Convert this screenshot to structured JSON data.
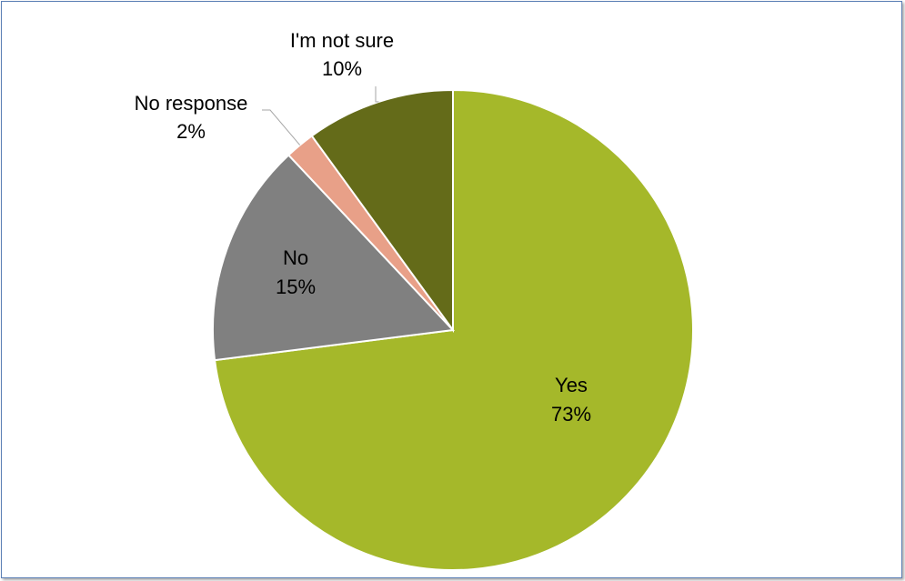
{
  "chart_data": {
    "type": "pie",
    "title": "",
    "start_angle_deg": 0,
    "direction": "clockwise",
    "slices": [
      {
        "label": "Yes",
        "value": 73,
        "value_text": "73%",
        "color": "#a5b82a",
        "label_position": "inside"
      },
      {
        "label": "No",
        "value": 15,
        "value_text": "15%",
        "color": "#808080",
        "label_position": "inside"
      },
      {
        "label": "No response",
        "value": 2,
        "value_text": "2%",
        "color": "#e8a088",
        "label_position": "outside"
      },
      {
        "label": "I'm not sure",
        "value": 10,
        "value_text": "10%",
        "color": "#646b19",
        "label_position": "outside"
      }
    ],
    "legend": "none"
  },
  "colors": {
    "frame_border": "#5b7fb5",
    "slice_stroke": "#ffffff",
    "leader_line": "#a6a6a6"
  }
}
